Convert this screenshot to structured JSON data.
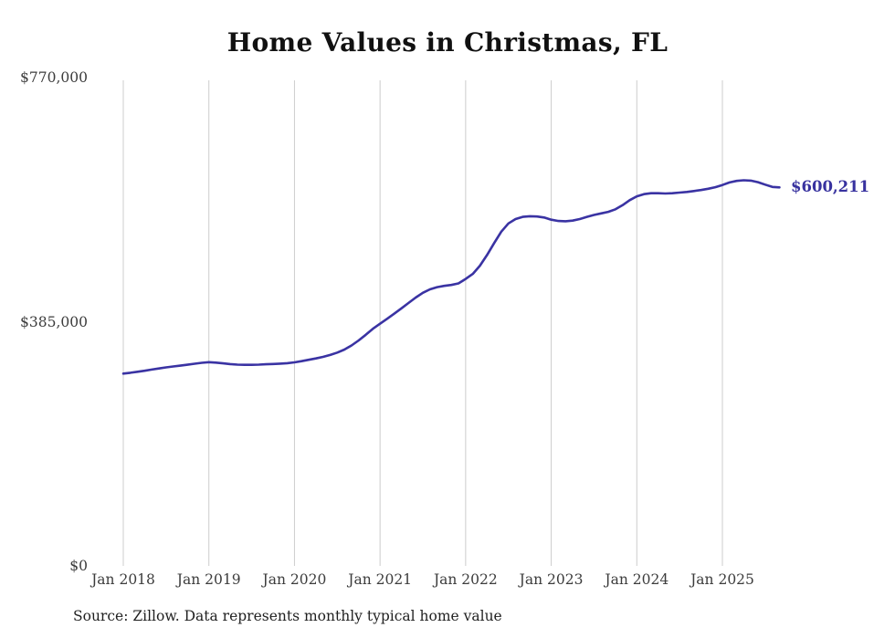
{
  "chart_data": {
    "type": "line",
    "title": "Home Values in Christmas, FL",
    "series_name": "Monthly typical home value",
    "x": [
      "2018-01",
      "2018-02",
      "2018-03",
      "2018-04",
      "2018-05",
      "2018-06",
      "2018-07",
      "2018-08",
      "2018-09",
      "2018-10",
      "2018-11",
      "2018-12",
      "2019-01",
      "2019-02",
      "2019-03",
      "2019-04",
      "2019-05",
      "2019-06",
      "2019-07",
      "2019-08",
      "2019-09",
      "2019-10",
      "2019-11",
      "2019-12",
      "2020-01",
      "2020-02",
      "2020-03",
      "2020-04",
      "2020-05",
      "2020-06",
      "2020-07",
      "2020-08",
      "2020-09",
      "2020-10",
      "2020-11",
      "2020-12",
      "2021-01",
      "2021-02",
      "2021-03",
      "2021-04",
      "2021-05",
      "2021-06",
      "2021-07",
      "2021-08",
      "2021-09",
      "2021-10",
      "2021-11",
      "2021-12",
      "2022-01",
      "2022-02",
      "2022-03",
      "2022-04",
      "2022-05",
      "2022-06",
      "2022-07",
      "2022-08",
      "2022-09",
      "2022-10",
      "2022-11",
      "2022-12",
      "2023-01",
      "2023-02",
      "2023-03",
      "2023-04",
      "2023-05",
      "2023-06",
      "2023-07",
      "2023-08",
      "2023-09",
      "2023-10",
      "2023-11",
      "2023-12",
      "2024-01",
      "2024-02",
      "2024-03",
      "2024-04",
      "2024-05",
      "2024-06",
      "2024-07",
      "2024-08",
      "2024-09",
      "2024-10",
      "2024-11",
      "2024-12",
      "2025-01",
      "2025-02",
      "2025-03",
      "2025-04",
      "2025-05",
      "2025-06",
      "2025-07",
      "2025-08",
      "2025-09"
    ],
    "values": [
      305000,
      306200,
      307800,
      309500,
      311300,
      313000,
      314800,
      316300,
      317600,
      319000,
      320600,
      322000,
      323000,
      322400,
      321200,
      320000,
      319200,
      318800,
      318800,
      319200,
      319700,
      320100,
      320700,
      321500,
      322800,
      324600,
      326800,
      329000,
      331500,
      334500,
      338200,
      343000,
      349500,
      357500,
      366500,
      376000,
      384000,
      392000,
      400000,
      408500,
      417000,
      425500,
      433000,
      438500,
      442000,
      444000,
      445500,
      448000,
      455000,
      463000,
      476000,
      493000,
      512000,
      530000,
      543000,
      550000,
      553500,
      554500,
      554000,
      552500,
      549000,
      547000,
      546500,
      547500,
      550000,
      553500,
      556500,
      559000,
      561500,
      565500,
      572000,
      580000,
      586000,
      589500,
      591000,
      591000,
      590500,
      591000,
      592000,
      593000,
      594500,
      596000,
      598000,
      600500,
      604000,
      608000,
      610500,
      611500,
      611000,
      608500,
      604500,
      601000,
      600211
    ],
    "ylim": [
      0,
      770000
    ],
    "y_ticks": [
      {
        "value": 0,
        "label": "$0"
      },
      {
        "value": 385000,
        "label": "$385,000"
      },
      {
        "value": 770000,
        "label": "$770,000"
      }
    ],
    "x_ticks": [
      "Jan 2018",
      "Jan 2019",
      "Jan 2020",
      "Jan 2021",
      "Jan 2022",
      "Jan 2023",
      "Jan 2024",
      "Jan 2025"
    ],
    "end_label": "$600,211",
    "latest_value": 600211,
    "grid": "vertical-only",
    "legend": "none",
    "colors": {
      "line": "#3a33a3",
      "end_label": "#38329f",
      "grid": "#cccccc",
      "tick_text": "#3c3c3c"
    },
    "source_note": "Source: Zillow. Data represents monthly typical home value"
  }
}
